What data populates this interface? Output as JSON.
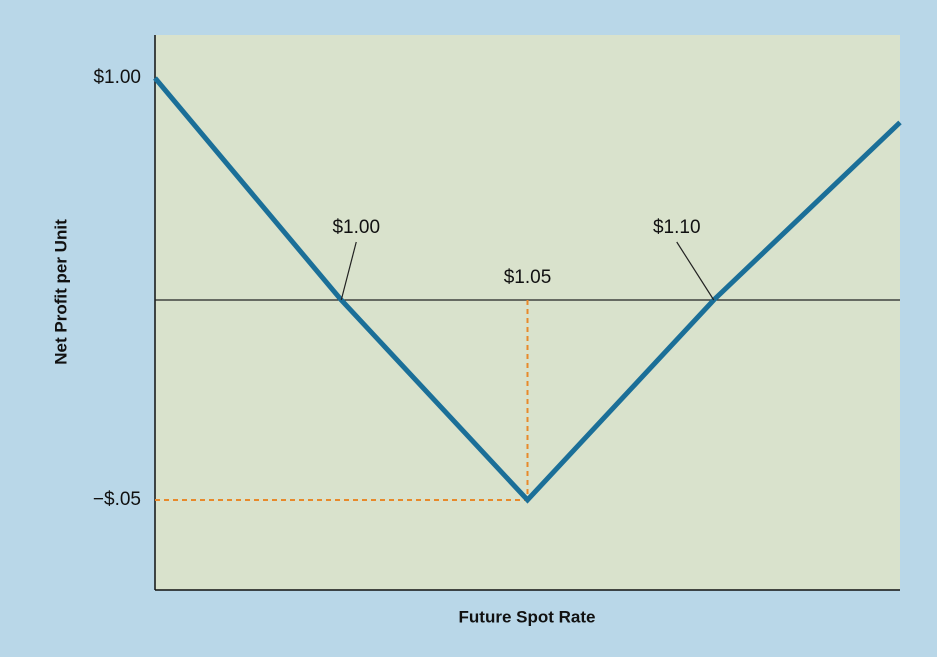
{
  "chart_data": {
    "type": "line",
    "x_label": "Future Spot Rate",
    "y_label": "Net Profit per Unit",
    "x": [
      0.95,
      1.0,
      1.05,
      1.1,
      1.15
    ],
    "series": [
      {
        "color": "#1b6f98",
        "values": [
          1.0,
          0,
          -0.05,
          0,
          0.8
        ]
      }
    ],
    "xlim": [
      0.95,
      1.15
    ],
    "ylim": [
      -0.1,
      1.1
    ],
    "yticks": [
      {
        "value": -0.05,
        "label": "−$.05"
      },
      {
        "value": 1.0,
        "label": "$1.00"
      }
    ],
    "reference_line": 0,
    "guide_color": "#e8892a",
    "annotations": [
      {
        "text": "$1.00",
        "x": 1.0,
        "y": 0
      },
      {
        "text": "$1.05",
        "x": 1.05,
        "y": -0.05
      },
      {
        "text": "$1.10",
        "x": 1.1,
        "y": 0
      }
    ]
  }
}
